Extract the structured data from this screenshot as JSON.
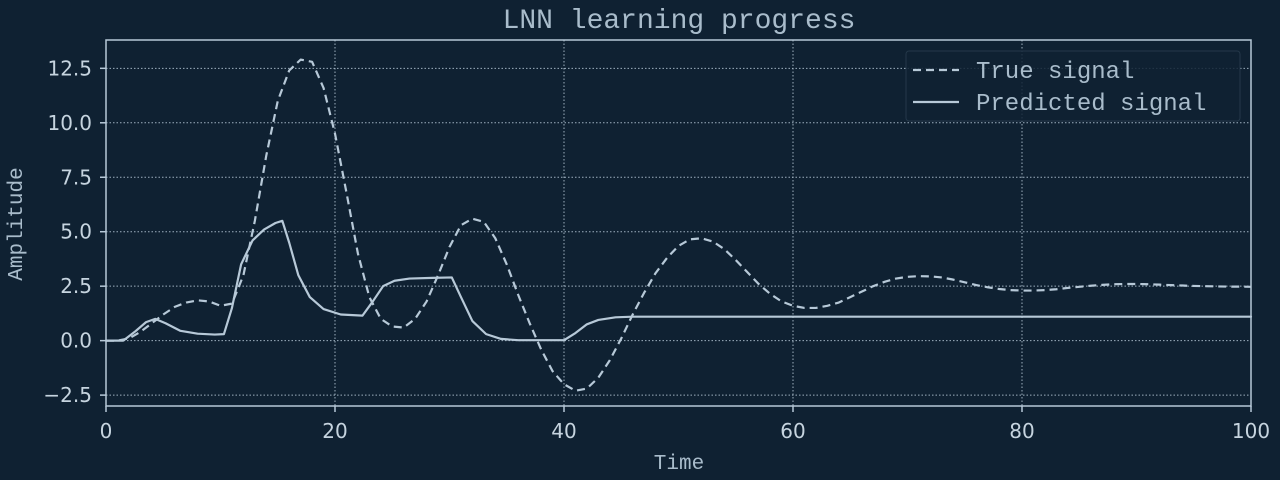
{
  "chart_data": {
    "type": "line",
    "title": "LNN learning progress",
    "xlabel": "Time",
    "ylabel": "Amplitude",
    "xlim": [
      0,
      100
    ],
    "ylim": [
      -3.0,
      13.8
    ],
    "x_ticks": [
      0,
      20,
      40,
      60,
      80,
      100
    ],
    "y_ticks": [
      -2.5,
      0.0,
      2.5,
      5.0,
      7.5,
      10.0,
      12.5
    ],
    "y_tick_decimals": 1,
    "grid": true,
    "legend_position": "top-right",
    "colors": {
      "background": "#0f2132",
      "line": "#b7c9d8",
      "grid": "#b7c9d8",
      "axes": "#b7c9d8",
      "text": "#a9bccb",
      "tick_text": "#c6d4df"
    },
    "series": [
      {
        "name": "True signal",
        "style": "dashed",
        "points": [
          [
            0,
            0.0
          ],
          [
            1,
            0.0
          ],
          [
            2,
            0.1
          ],
          [
            3,
            0.4
          ],
          [
            4,
            0.8
          ],
          [
            5,
            1.2
          ],
          [
            6,
            1.55
          ],
          [
            7,
            1.75
          ],
          [
            8,
            1.85
          ],
          [
            9,
            1.8
          ],
          [
            10,
            1.6
          ],
          [
            11,
            1.7
          ],
          [
            12,
            3.0
          ],
          [
            13,
            5.5
          ],
          [
            14,
            8.5
          ],
          [
            15,
            11.0
          ],
          [
            16,
            12.4
          ],
          [
            17,
            12.9
          ],
          [
            18,
            12.8
          ],
          [
            19,
            11.6
          ],
          [
            20,
            9.5
          ],
          [
            21,
            6.8
          ],
          [
            22,
            4.0
          ],
          [
            23,
            2.0
          ],
          [
            24,
            1.0
          ],
          [
            25,
            0.65
          ],
          [
            26,
            0.6
          ],
          [
            27,
            1.0
          ],
          [
            28,
            1.8
          ],
          [
            29,
            3.0
          ],
          [
            30,
            4.3
          ],
          [
            31,
            5.3
          ],
          [
            32,
            5.6
          ],
          [
            33,
            5.45
          ],
          [
            34,
            4.7
          ],
          [
            35,
            3.5
          ],
          [
            36,
            2.1
          ],
          [
            37,
            0.8
          ],
          [
            38,
            -0.4
          ],
          [
            39,
            -1.4
          ],
          [
            40,
            -2.0
          ],
          [
            41,
            -2.3
          ],
          [
            42,
            -2.2
          ],
          [
            43,
            -1.7
          ],
          [
            44,
            -0.9
          ],
          [
            45,
            0.1
          ],
          [
            46,
            1.2
          ],
          [
            47,
            2.2
          ],
          [
            48,
            3.1
          ],
          [
            49,
            3.8
          ],
          [
            50,
            4.35
          ],
          [
            51,
            4.65
          ],
          [
            52,
            4.7
          ],
          [
            53,
            4.55
          ],
          [
            54,
            4.2
          ],
          [
            55,
            3.7
          ],
          [
            56,
            3.15
          ],
          [
            57,
            2.6
          ],
          [
            58,
            2.15
          ],
          [
            59,
            1.8
          ],
          [
            60,
            1.6
          ],
          [
            61,
            1.5
          ],
          [
            62,
            1.5
          ],
          [
            63,
            1.6
          ],
          [
            64,
            1.75
          ],
          [
            65,
            2.0
          ],
          [
            66,
            2.25
          ],
          [
            67,
            2.5
          ],
          [
            68,
            2.7
          ],
          [
            69,
            2.85
          ],
          [
            70,
            2.93
          ],
          [
            71,
            2.96
          ],
          [
            72,
            2.95
          ],
          [
            73,
            2.9
          ],
          [
            74,
            2.8
          ],
          [
            75,
            2.68
          ],
          [
            76,
            2.55
          ],
          [
            77,
            2.45
          ],
          [
            78,
            2.37
          ],
          [
            79,
            2.32
          ],
          [
            80,
            2.3
          ],
          [
            81,
            2.3
          ],
          [
            82,
            2.32
          ],
          [
            83,
            2.36
          ],
          [
            84,
            2.42
          ],
          [
            85,
            2.47
          ],
          [
            86,
            2.52
          ],
          [
            87,
            2.56
          ],
          [
            88,
            2.59
          ],
          [
            89,
            2.6
          ],
          [
            90,
            2.6
          ],
          [
            91,
            2.59
          ],
          [
            92,
            2.57
          ],
          [
            93,
            2.55
          ],
          [
            94,
            2.53
          ],
          [
            95,
            2.51
          ],
          [
            96,
            2.5
          ],
          [
            97,
            2.49
          ],
          [
            98,
            2.48
          ],
          [
            99,
            2.48
          ],
          [
            100,
            2.47
          ]
        ]
      },
      {
        "name": "Predicted signal",
        "style": "solid",
        "points": [
          [
            0,
            0.0
          ],
          [
            1.5,
            0.0
          ],
          [
            2.5,
            0.4
          ],
          [
            3.5,
            0.85
          ],
          [
            4.3,
            1.0
          ],
          [
            5.2,
            0.8
          ],
          [
            6.5,
            0.45
          ],
          [
            8,
            0.32
          ],
          [
            9.5,
            0.28
          ],
          [
            10.3,
            0.3
          ],
          [
            11,
            1.5
          ],
          [
            11.8,
            3.5
          ],
          [
            12.8,
            4.6
          ],
          [
            13.8,
            5.1
          ],
          [
            14.8,
            5.4
          ],
          [
            15.4,
            5.5
          ],
          [
            16,
            4.5
          ],
          [
            16.8,
            3.0
          ],
          [
            17.8,
            2.0
          ],
          [
            19,
            1.45
          ],
          [
            20.5,
            1.2
          ],
          [
            22.4,
            1.15
          ],
          [
            23.3,
            1.8
          ],
          [
            24.2,
            2.5
          ],
          [
            25.2,
            2.75
          ],
          [
            26.5,
            2.85
          ],
          [
            28.5,
            2.88
          ],
          [
            30.2,
            2.9
          ],
          [
            31,
            2.0
          ],
          [
            32,
            0.9
          ],
          [
            33.2,
            0.3
          ],
          [
            34.5,
            0.08
          ],
          [
            36,
            0.02
          ],
          [
            40,
            0.02
          ],
          [
            41,
            0.35
          ],
          [
            42,
            0.75
          ],
          [
            43,
            0.95
          ],
          [
            44.5,
            1.07
          ],
          [
            46,
            1.1
          ],
          [
            60,
            1.1
          ],
          [
            80,
            1.1
          ],
          [
            100,
            1.1
          ]
        ]
      }
    ]
  }
}
